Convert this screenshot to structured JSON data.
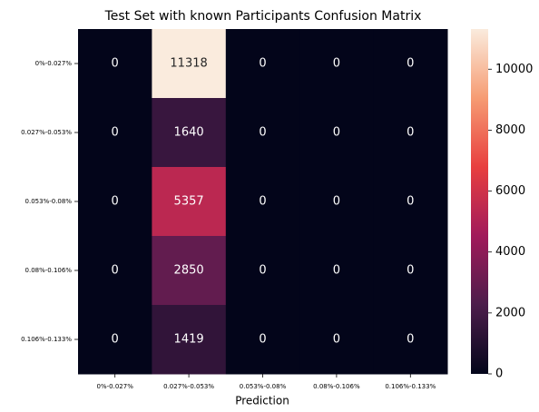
{
  "chart_data": {
    "type": "heatmap",
    "title": "Test Set with known Participants Confusion Matrix",
    "x_label": "Prediction",
    "rows": [
      "0%-0.027%",
      "0.027%-0.053%",
      "0.053%-0.08%",
      "0.08%-0.106%",
      "0.106%-0.133%"
    ],
    "columns": [
      "0%-0.027%",
      "0.027%-0.053%",
      "0.053%-0.08%",
      "0.08%-0.106%",
      "0.106%-0.133%"
    ],
    "values": [
      [
        0,
        11318,
        0,
        0,
        0
      ],
      [
        0,
        1640,
        0,
        0,
        0
      ],
      [
        0,
        5357,
        0,
        0,
        0
      ],
      [
        0,
        2850,
        0,
        0,
        0
      ],
      [
        0,
        1419,
        0,
        0,
        0
      ]
    ],
    "clim": [
      0,
      11318
    ],
    "cticks": [
      0,
      2000,
      4000,
      6000,
      8000,
      10000
    ],
    "colormap": [
      "#03051a",
      "#4c1d4b",
      "#a11a5b",
      "#e83f3f",
      "#f69c73",
      "#faebdd"
    ]
  }
}
